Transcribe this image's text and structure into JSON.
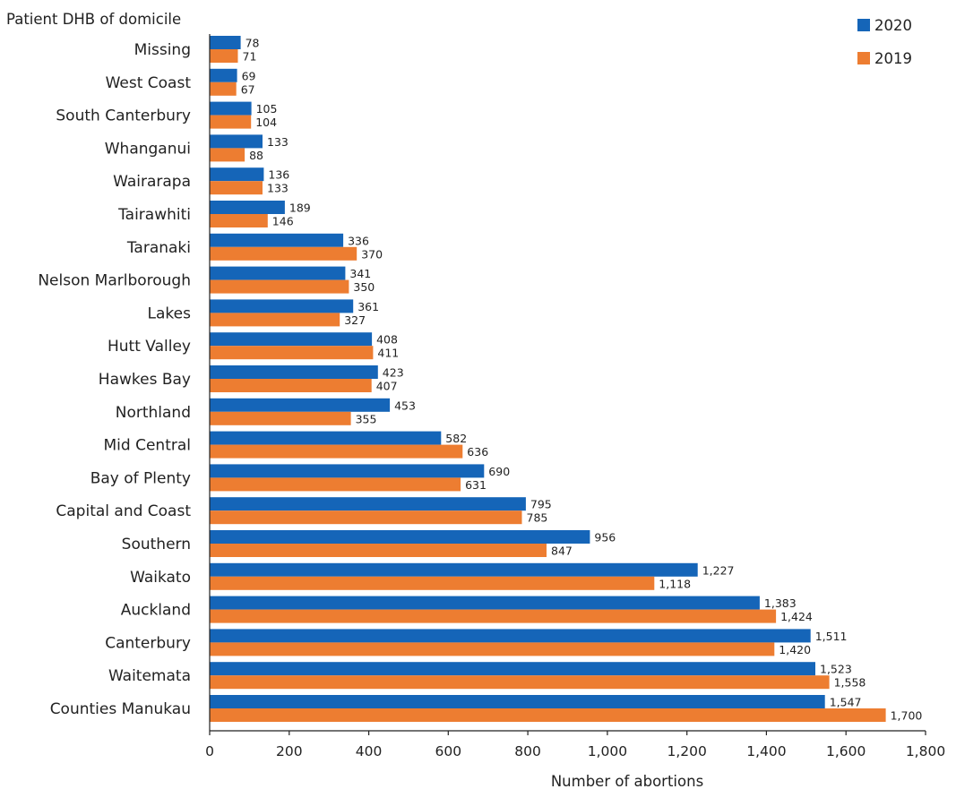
{
  "chart_data": {
    "type": "bar",
    "orientation": "horizontal",
    "category_axis_title": "Patient DHB of domicile",
    "xlabel": "Number of abortions",
    "xlim": [
      0,
      1800
    ],
    "xticks": [
      0,
      200,
      400,
      600,
      800,
      1000,
      1200,
      1400,
      1600,
      1800
    ],
    "xtick_labels": [
      "0",
      "200",
      "400",
      "600",
      "800",
      "1,000",
      "1,200",
      "1,400",
      "1,600",
      "1,800"
    ],
    "grid": false,
    "legend_position": "top-right",
    "categories": [
      "Missing",
      "West Coast",
      "South Canterbury",
      "Whanganui",
      "Wairarapa",
      "Tairawhiti",
      "Taranaki",
      "Nelson Marlborough",
      "Lakes",
      "Hutt Valley",
      "Hawkes Bay",
      "Northland",
      "Mid Central",
      "Bay of Plenty",
      "Capital and Coast",
      "Southern",
      "Waikato",
      "Auckland",
      "Canterbury",
      "Waitemata",
      "Counties Manukau"
    ],
    "series": [
      {
        "name": "2020",
        "color": "#1565b8",
        "values": [
          78,
          69,
          105,
          133,
          136,
          189,
          336,
          341,
          361,
          408,
          423,
          453,
          582,
          690,
          795,
          956,
          1227,
          1383,
          1511,
          1523,
          1547
        ],
        "labels": [
          "78",
          "69",
          "105",
          "133",
          "136",
          "189",
          "336",
          "341",
          "361",
          "408",
          "423",
          "453",
          "582",
          "690",
          "795",
          "956",
          "1,227",
          "1,383",
          "1,511",
          "1,523",
          "1,547"
        ]
      },
      {
        "name": "2019",
        "color": "#ed7d31",
        "values": [
          71,
          67,
          104,
          88,
          133,
          146,
          370,
          350,
          327,
          411,
          407,
          355,
          636,
          631,
          785,
          847,
          1118,
          1424,
          1420,
          1558,
          1700
        ],
        "labels": [
          "71",
          "67",
          "104",
          "88",
          "133",
          "146",
          "370",
          "350",
          "327",
          "411",
          "407",
          "355",
          "636",
          "631",
          "785",
          "847",
          "1,118",
          "1,424",
          "1,420",
          "1,558",
          "1,700"
        ]
      }
    ]
  }
}
